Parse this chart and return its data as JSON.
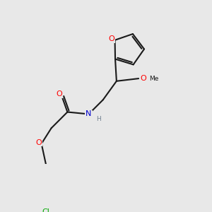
{
  "bg_color": "#e8e8e8",
  "bond_color": "#1a1a1a",
  "bond_width": 1.5,
  "atom_colors": {
    "O": "#ff0000",
    "N": "#0000cc",
    "Cl": "#00aa00",
    "H": "#708090",
    "C": "#1a1a1a"
  },
  "font_size_atom": 8,
  "font_size_small": 6.5
}
